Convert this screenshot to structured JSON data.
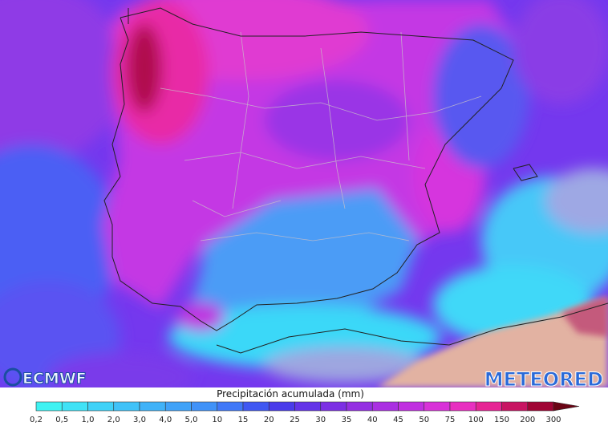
{
  "map": {
    "logos": {
      "left": "ECMWF",
      "right": "METEORED"
    },
    "legend": {
      "title": "Precipitación acumulada (mm)",
      "labels": [
        "0,2",
        "0,5",
        "1,0",
        "2,0",
        "3,0",
        "4,0",
        "5,0",
        "10",
        "15",
        "20",
        "25",
        "30",
        "35",
        "40",
        "45",
        "50",
        "75",
        "100",
        "150",
        "200",
        "300"
      ],
      "colors": [
        "#3ff2f2",
        "#40e2f6",
        "#40d2f8",
        "#40c2f8",
        "#40b2f8",
        "#40a2f8",
        "#4092f8",
        "#4078f8",
        "#4058f2",
        "#4a3cea",
        "#6434e8",
        "#7c30e4",
        "#9430e2",
        "#aa30e2",
        "#c030e0",
        "#d832d8",
        "#e830c0",
        "#e62494",
        "#c81462",
        "#a00434"
      ],
      "over_color": "#6a0414"
    }
  }
}
